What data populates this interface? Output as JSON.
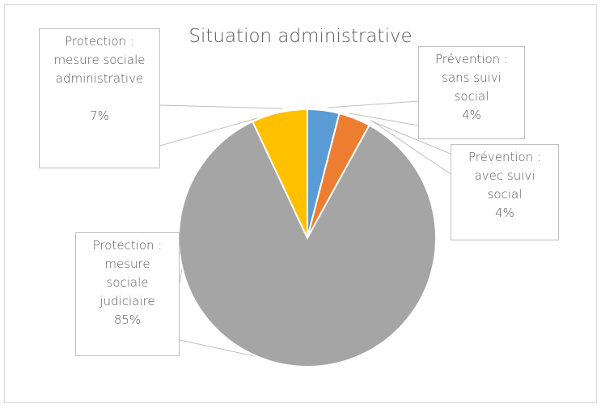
{
  "chart_data": {
    "type": "pie",
    "title": "Situation administrative",
    "categories": [
      "Prévention : sans suivi social",
      "Prévention : avec suivi social",
      "Protection : mesure sociale judiciaire",
      "Protection : mesure sociale administrative"
    ],
    "values": [
      4,
      4,
      85,
      7
    ],
    "value_labels": [
      "4%",
      "4%",
      "85%",
      "7%"
    ],
    "colors": [
      "#5b9bd5",
      "#ed7d31",
      "#a5a5a5",
      "#ffc000"
    ]
  }
}
